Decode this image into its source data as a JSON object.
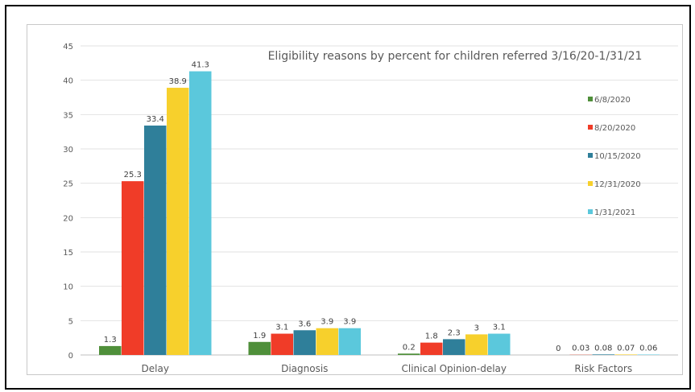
{
  "chart_data": {
    "type": "bar",
    "title": "Eligibility reasons by percent for children referred 3/16/20-1/31/21",
    "xlabel": "",
    "ylabel": "",
    "ylim": [
      0,
      45
    ],
    "yticks": [
      0,
      5,
      10,
      15,
      20,
      25,
      30,
      35,
      40,
      45
    ],
    "grid": true,
    "legend_position": "right",
    "categories": [
      "Delay",
      "Diagnosis",
      "Clinical Opinion-delay",
      "Risk Factors"
    ],
    "series": [
      {
        "name": "6/8/2020",
        "color": "#4f8f3a",
        "values": [
          1.3,
          1.9,
          0.2,
          0
        ],
        "labels": [
          "1.3",
          "1.9",
          "0.2",
          "0"
        ]
      },
      {
        "name": "8/20/2020",
        "color": "#f03c28",
        "values": [
          25.3,
          3.1,
          1.8,
          0.03
        ],
        "labels": [
          "25.3",
          "3.1",
          "1.8",
          "0.03"
        ]
      },
      {
        "name": "10/15/2020",
        "color": "#2f7f9a",
        "values": [
          33.4,
          3.6,
          2.3,
          0.08
        ],
        "labels": [
          "33.4",
          "3.6",
          "2.3",
          "0.08"
        ]
      },
      {
        "name": "12/31/2020",
        "color": "#f7d02c",
        "values": [
          38.9,
          3.9,
          3,
          0.07
        ],
        "labels": [
          "38.9",
          "3.9",
          "3",
          "0.07"
        ]
      },
      {
        "name": "1/31/2021",
        "color": "#5bc8dc",
        "values": [
          41.3,
          3.9,
          3.1,
          0.06
        ],
        "labels": [
          "41.3",
          "3.9",
          "3.1",
          "0.06"
        ]
      }
    ]
  }
}
